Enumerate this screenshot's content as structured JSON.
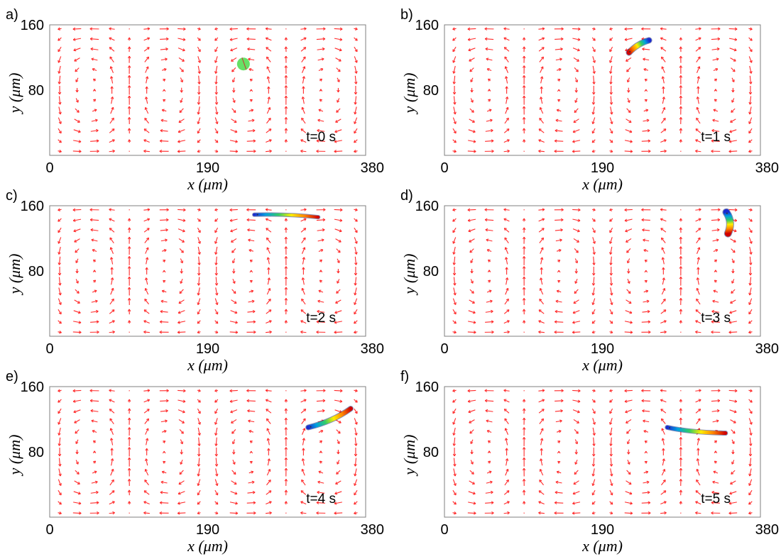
{
  "chart_data": [
    {
      "type": "quiver",
      "panel_label": "a)",
      "time_label": "t=0 s",
      "xlabel": "x (μm)",
      "ylabel": "y (μm)",
      "xlim": [
        0,
        380
      ],
      "ylim": [
        0,
        160
      ],
      "xticks": [
        "0",
        "190",
        "380"
      ],
      "yticks": [
        "80",
        "160"
      ],
      "field": "acoustic streaming, two counter-rotating vortex pairs",
      "particle": {
        "shape": "circle",
        "color": "#66e066",
        "x": 233,
        "y": 112,
        "r": 9
      }
    },
    {
      "type": "quiver",
      "panel_label": "b)",
      "time_label": "t=1 s",
      "xlabel": "x (μm)",
      "ylabel": "y (μm)",
      "xlim": [
        0,
        380
      ],
      "ylim": [
        0,
        160
      ],
      "xticks": [
        "0",
        "190",
        "380"
      ],
      "yticks": [
        "80",
        "160"
      ],
      "particle": {
        "shape": "streak",
        "path": [
          [
            222,
            126
          ],
          [
            232,
            137
          ],
          [
            246,
            141
          ]
        ],
        "width": 7,
        "colormap": "red-to-blue"
      }
    },
    {
      "type": "quiver",
      "panel_label": "c)",
      "time_label": "t=2 s",
      "xlabel": "x (μm)",
      "ylabel": "y (μm)",
      "xlim": [
        0,
        380
      ],
      "ylim": [
        0,
        160
      ],
      "xticks": [
        "0",
        "190",
        "380"
      ],
      "yticks": [
        "80",
        "160"
      ],
      "particle": {
        "shape": "streak",
        "path": [
          [
            246,
            149
          ],
          [
            285,
            150
          ],
          [
            323,
            146
          ]
        ],
        "width": 4,
        "colormap": "blue-to-red"
      }
    },
    {
      "type": "quiver",
      "panel_label": "d)",
      "time_label": "t=3 s",
      "xlabel": "x (μm)",
      "ylabel": "y (μm)",
      "xlim": [
        0,
        380
      ],
      "ylim": [
        0,
        160
      ],
      "xticks": [
        "0",
        "190",
        "380"
      ],
      "yticks": [
        "80",
        "160"
      ],
      "particle": {
        "shape": "streak",
        "path": [
          [
            339,
            152
          ],
          [
            347,
            140
          ],
          [
            341,
            126
          ]
        ],
        "width": 9,
        "colormap": "blue-to-red"
      }
    },
    {
      "type": "quiver",
      "panel_label": "e)",
      "time_label": "t=4 s",
      "xlabel": "x (μm)",
      "ylabel": "y (μm)",
      "xlim": [
        0,
        380
      ],
      "ylim": [
        0,
        160
      ],
      "xticks": [
        "0",
        "190",
        "380"
      ],
      "yticks": [
        "80",
        "160"
      ],
      "particle": {
        "shape": "streak",
        "path": [
          [
            311,
            110
          ],
          [
            340,
            117
          ],
          [
            362,
            133
          ]
        ],
        "width": 6,
        "colormap": "blue-to-red"
      }
    },
    {
      "type": "quiver",
      "panel_label": "f)",
      "time_label": "t=5 s",
      "xlabel": "x (μm)",
      "ylabel": "y (μm)",
      "xlim": [
        0,
        380
      ],
      "ylim": [
        0,
        160
      ],
      "xticks": [
        "0",
        "190",
        "380"
      ],
      "yticks": [
        "80",
        "160"
      ],
      "particle": {
        "shape": "streak",
        "path": [
          [
            268,
            110
          ],
          [
            295,
            104
          ],
          [
            338,
            103
          ]
        ],
        "width": 5,
        "colormap": "blue-to-red"
      }
    }
  ]
}
